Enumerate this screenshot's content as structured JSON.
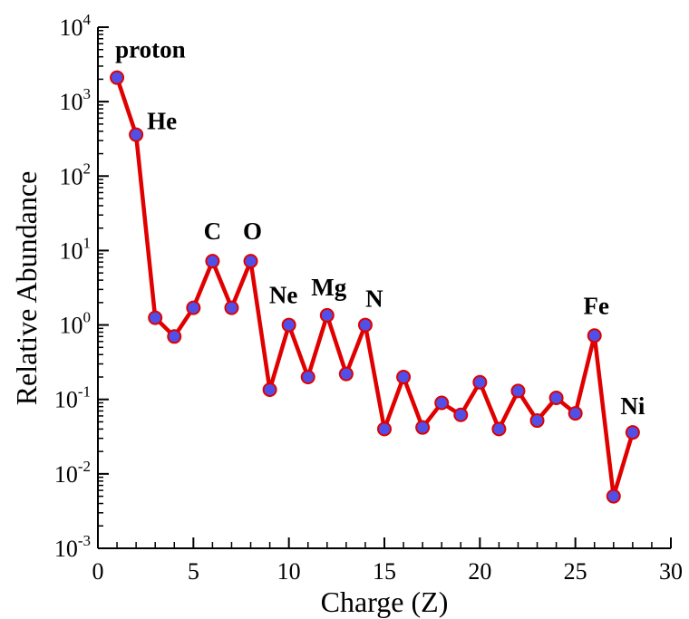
{
  "chart_data": {
    "type": "line",
    "xlabel": "Charge (Z)",
    "ylabel": "Relative Abundance",
    "xlim": [
      0,
      30
    ],
    "ylim": [
      0.001,
      10000
    ],
    "yscale": "log",
    "x_ticks": [
      0,
      5,
      10,
      15,
      20,
      25,
      30
    ],
    "y_ticks": [
      {
        "base": "10",
        "exp": "-3"
      },
      {
        "base": "10",
        "exp": "-2"
      },
      {
        "base": "10",
        "exp": "-1"
      },
      {
        "base": "10",
        "exp": "0"
      },
      {
        "base": "10",
        "exp": "1"
      },
      {
        "base": "10",
        "exp": "2"
      },
      {
        "base": "10",
        "exp": "3"
      },
      {
        "base": "10",
        "exp": "4"
      }
    ],
    "grid": false,
    "series": [
      {
        "color": "#e00000",
        "marker_color": "#5050e8",
        "x": [
          1,
          2,
          3,
          4,
          5,
          6,
          7,
          8,
          9,
          10,
          11,
          12,
          13,
          14,
          15,
          16,
          17,
          18,
          19,
          20,
          21,
          22,
          23,
          24,
          25,
          26,
          27,
          28
        ],
        "y": [
          2100,
          360,
          1.25,
          0.7,
          1.7,
          7.2,
          1.7,
          7.2,
          0.135,
          1.0,
          0.2,
          1.35,
          0.22,
          1.0,
          0.04,
          0.2,
          0.042,
          0.09,
          0.062,
          0.17,
          0.04,
          0.13,
          0.052,
          0.105,
          0.065,
          0.72,
          0.005,
          0.036
        ]
      }
    ],
    "annotations": [
      {
        "text": "proton",
        "x": 1,
        "y": 2100
      },
      {
        "text": "He",
        "x": 2,
        "y": 360
      },
      {
        "text": "C",
        "x": 6,
        "y": 7.2
      },
      {
        "text": "O",
        "x": 8,
        "y": 7.2
      },
      {
        "text": "Ne",
        "x": 10,
        "y": 1.0
      },
      {
        "text": "Mg",
        "x": 12,
        "y": 1.35
      },
      {
        "text": "N",
        "x": 14,
        "y": 1.0
      },
      {
        "text": "Fe",
        "x": 26,
        "y": 0.72
      },
      {
        "text": "Ni",
        "x": 28,
        "y": 0.036
      }
    ]
  }
}
